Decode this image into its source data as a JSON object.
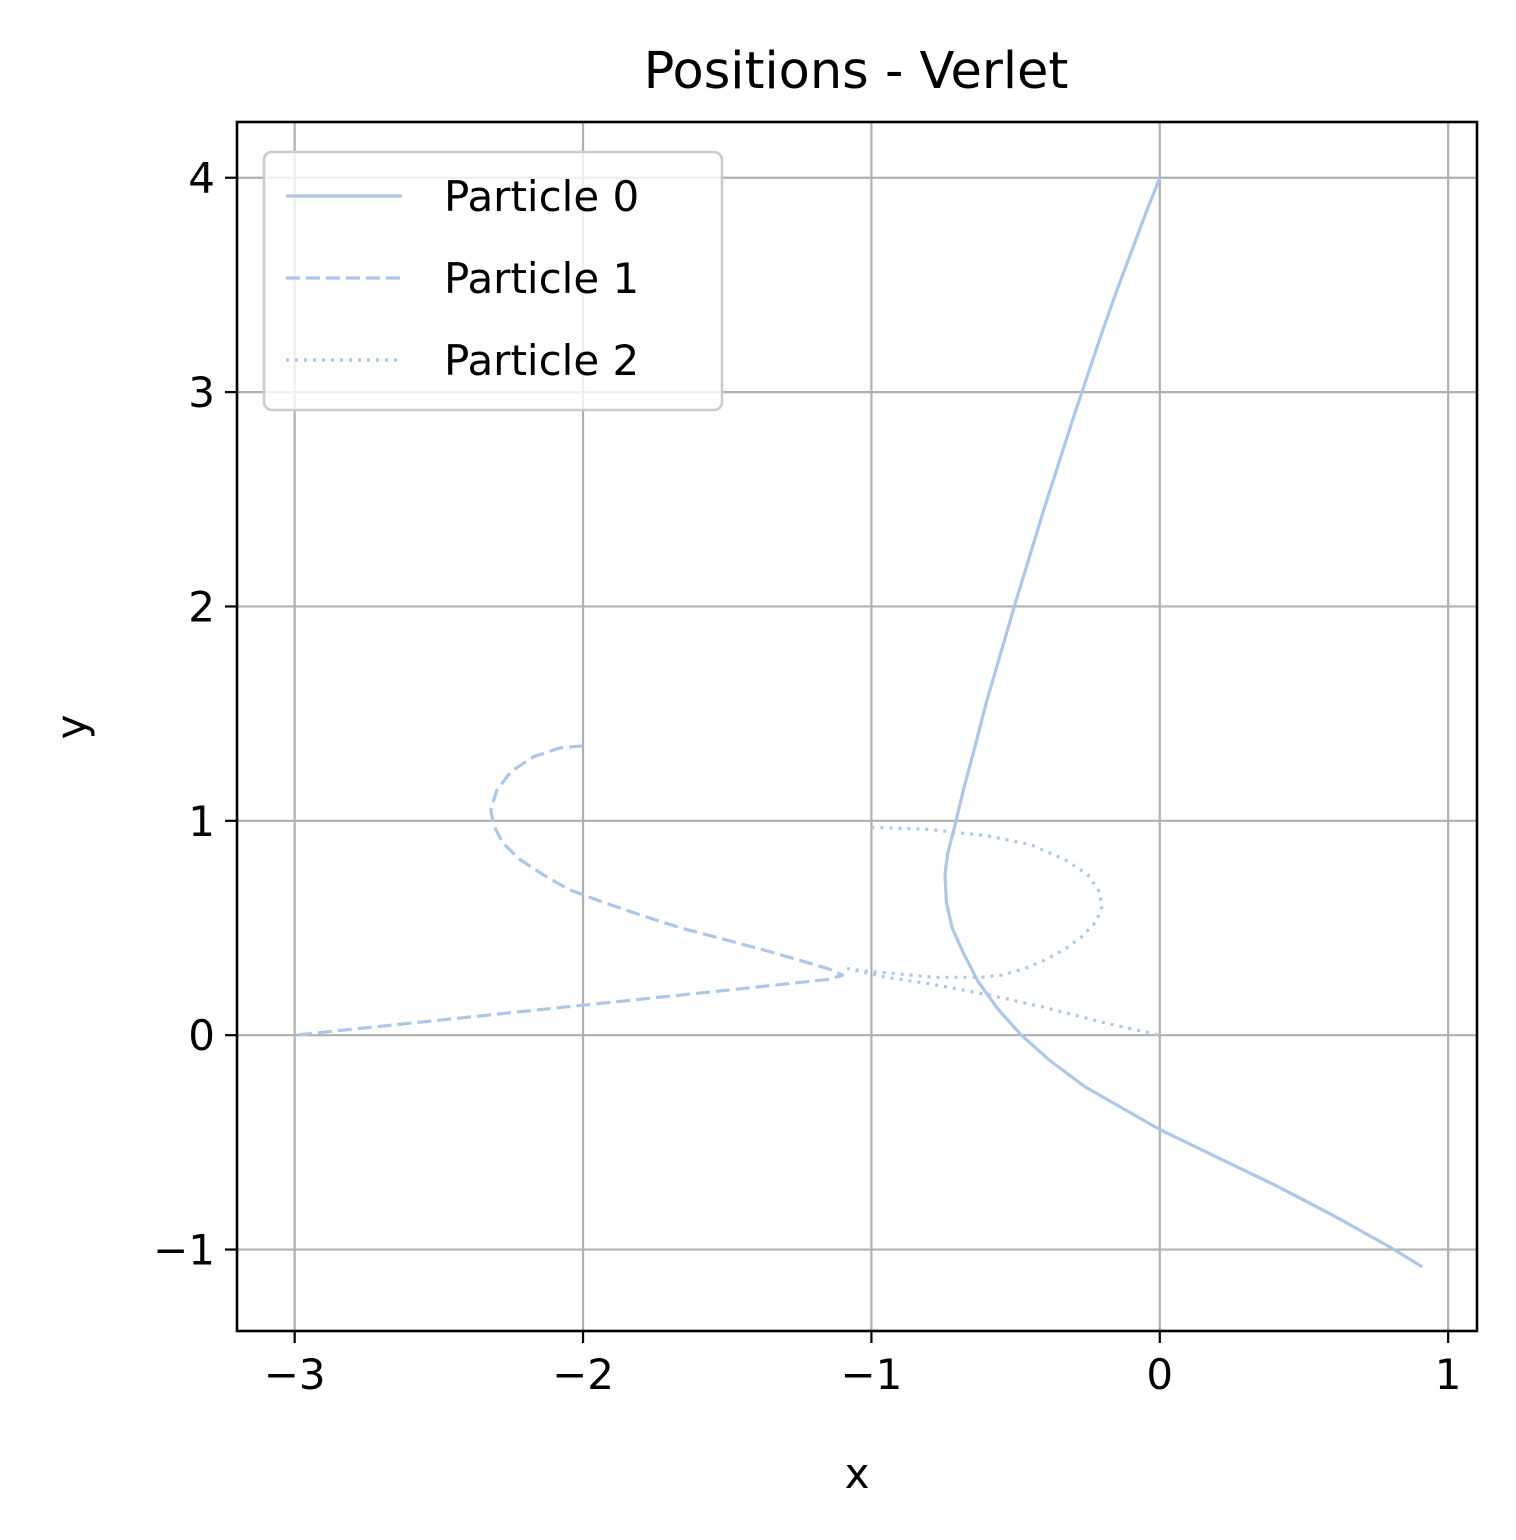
{
  "chart_data": {
    "type": "line",
    "title": "Positions - Verlet",
    "xlabel": "x",
    "ylabel": "y",
    "xlim": [
      -3.2,
      1.1
    ],
    "ylim": [
      -1.38,
      4.26
    ],
    "xticks": [
      -3,
      -2,
      -1,
      0,
      1
    ],
    "yticks": [
      -1,
      0,
      1,
      2,
      3,
      4
    ],
    "xtick_labels": [
      "−3",
      "−2",
      "−1",
      "0",
      "1"
    ],
    "ytick_labels": [
      "−1",
      "0",
      "1",
      "2",
      "3",
      "4"
    ],
    "grid": true,
    "legend_position": "top-left",
    "line_color": "#aec7e8",
    "series": [
      {
        "name": "Particle 0",
        "style": "solid",
        "x": [
          0.0,
          -0.05,
          -0.1,
          -0.15,
          -0.2,
          -0.25,
          -0.3,
          -0.35,
          -0.4,
          -0.45,
          -0.5,
          -0.55,
          -0.6,
          -0.64,
          -0.68,
          -0.71,
          -0.735,
          -0.745,
          -0.74,
          -0.72,
          -0.68,
          -0.63,
          -0.56,
          -0.48,
          -0.38,
          -0.26,
          -0.13,
          0.0,
          0.2,
          0.4,
          0.6,
          0.8,
          0.91
        ],
        "y": [
          4.0,
          3.83,
          3.65,
          3.47,
          3.28,
          3.08,
          2.88,
          2.67,
          2.46,
          2.24,
          2.02,
          1.79,
          1.56,
          1.35,
          1.15,
          0.98,
          0.85,
          0.75,
          0.62,
          0.5,
          0.38,
          0.25,
          0.12,
          0.0,
          -0.12,
          -0.24,
          -0.34,
          -0.44,
          -0.57,
          -0.7,
          -0.84,
          -0.99,
          -1.08
        ]
      },
      {
        "name": "Particle 1",
        "style": "dashed",
        "x": [
          -2.0,
          -2.08,
          -2.17,
          -2.25,
          -2.3,
          -2.32,
          -2.31,
          -2.28,
          -2.22,
          -2.14,
          -2.05,
          -1.93,
          -1.8,
          -1.66,
          -1.52,
          -1.38,
          -1.25,
          -1.15,
          -1.1,
          -1.15,
          -1.5,
          -2.0,
          -2.5,
          -3.0
        ],
        "y": [
          1.35,
          1.34,
          1.3,
          1.23,
          1.14,
          1.05,
          0.98,
          0.9,
          0.82,
          0.75,
          0.68,
          0.62,
          0.56,
          0.5,
          0.45,
          0.4,
          0.35,
          0.31,
          0.28,
          0.26,
          0.21,
          0.14,
          0.07,
          0.0
        ]
      },
      {
        "name": "Particle 2",
        "style": "dotted",
        "x": [
          -1.0,
          -0.8,
          -0.6,
          -0.45,
          -0.33,
          -0.25,
          -0.21,
          -0.2,
          -0.22,
          -0.27,
          -0.33,
          -0.4,
          -0.47,
          -0.55,
          -0.62,
          -0.7,
          -0.78,
          -0.86,
          -0.94,
          -1.02,
          -1.08,
          -0.95,
          -0.8,
          -0.6,
          -0.4,
          -0.2,
          0.0
        ],
        "y": [
          0.97,
          0.96,
          0.93,
          0.89,
          0.82,
          0.75,
          0.67,
          0.6,
          0.53,
          0.46,
          0.4,
          0.35,
          0.31,
          0.28,
          0.27,
          0.27,
          0.27,
          0.28,
          0.29,
          0.3,
          0.31,
          0.27,
          0.24,
          0.19,
          0.13,
          0.06,
          0.0
        ]
      }
    ]
  }
}
